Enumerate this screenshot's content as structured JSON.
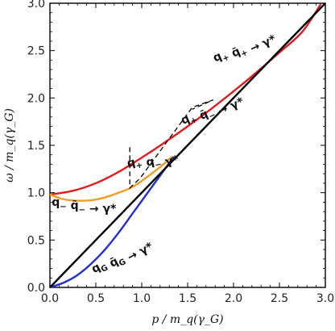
{
  "chart_data": {
    "type": "line",
    "xlabel": "p / m_q(γ_G)",
    "ylabel": "ω / m_q(γ_G)",
    "xlim": [
      0,
      3
    ],
    "ylim": [
      0,
      3
    ],
    "x_ticks": [
      "0.0",
      "0.5",
      "1.0",
      "1.5",
      "2.0",
      "2.5",
      "3.0"
    ],
    "y_ticks": [
      "0.0",
      "0.5",
      "1.0",
      "1.5",
      "2.0",
      "2.5",
      "3.0"
    ],
    "grid": false,
    "legend": "none",
    "series": [
      {
        "color": "#e41a1c",
        "x": [
          0.0,
          0.25,
          0.5,
          0.75,
          1.0,
          1.25,
          1.5,
          1.75,
          2.0,
          2.25,
          2.5,
          2.75,
          2.95
        ],
        "y": [
          0.98,
          1.02,
          1.1,
          1.22,
          1.37,
          1.53,
          1.7,
          1.88,
          2.07,
          2.27,
          2.48,
          2.7,
          2.99
        ]
      },
      {
        "color": "#f39c1f",
        "x": [
          0.0,
          0.15,
          0.3,
          0.45,
          0.6,
          0.75,
          0.9,
          1.05,
          1.2,
          1.33
        ],
        "y": [
          0.98,
          0.93,
          0.915,
          0.92,
          0.95,
          1.0,
          1.06,
          1.16,
          1.27,
          1.38
        ]
      },
      {
        "color": "#1f2fd6",
        "x": [
          0.0,
          0.15,
          0.3,
          0.45,
          0.6,
          0.75,
          0.9,
          1.05,
          1.2,
          1.35
        ],
        "y": [
          0.0,
          0.05,
          0.13,
          0.25,
          0.4,
          0.58,
          0.78,
          0.98,
          1.18,
          1.38
        ]
      },
      {
        "color": "#000000",
        "x": [
          0.0,
          3.0
        ],
        "y": [
          0.0,
          3.0
        ]
      }
    ],
    "dashed_paths": [
      {
        "color": "#000000",
        "x": [
          0.87,
          0.87,
          0.98,
          1.55,
          1.78,
          1.55
        ],
        "y": [
          1.48,
          1.05,
          1.15,
          1.9,
          1.98,
          1.88
        ]
      }
    ],
    "annotations": [
      {
        "id": "qp-qpbar",
        "x": 1.8,
        "y": 2.38,
        "rotate": -24,
        "main": "q",
        "parts": [
          [
            "q",
            "+"
          ],
          [
            "q̄",
            "+"
          ]
        ],
        "arrow": " → γ*"
      },
      {
        "id": "qp-qmbar",
        "x": 1.45,
        "y": 1.72,
        "rotate": -24,
        "parts": [
          [
            "q",
            "+"
          ],
          [
            "q̄",
            "−"
          ]
        ],
        "arrow": " → γ*"
      },
      {
        "id": "qp-qm-cross",
        "x": 0.85,
        "y": 1.27,
        "rotate": -12,
        "parts": [
          [
            "q",
            "+"
          ],
          [
            "q",
            "−"
          ]
        ],
        "arrow": " γ*",
        "cross": true
      },
      {
        "id": "qm-qmbar",
        "x": 0.02,
        "y": 0.86,
        "rotate": 0,
        "parts": [
          [
            "q",
            "−"
          ],
          [
            "q̄",
            "−"
          ]
        ],
        "arrow": " → γ*"
      },
      {
        "id": "qg-qgbar",
        "x": 0.48,
        "y": 0.15,
        "rotate": -28,
        "parts": [
          [
            "q",
            "G"
          ],
          [
            "q̄",
            "G"
          ]
        ],
        "arrow": " → γ*"
      }
    ]
  }
}
